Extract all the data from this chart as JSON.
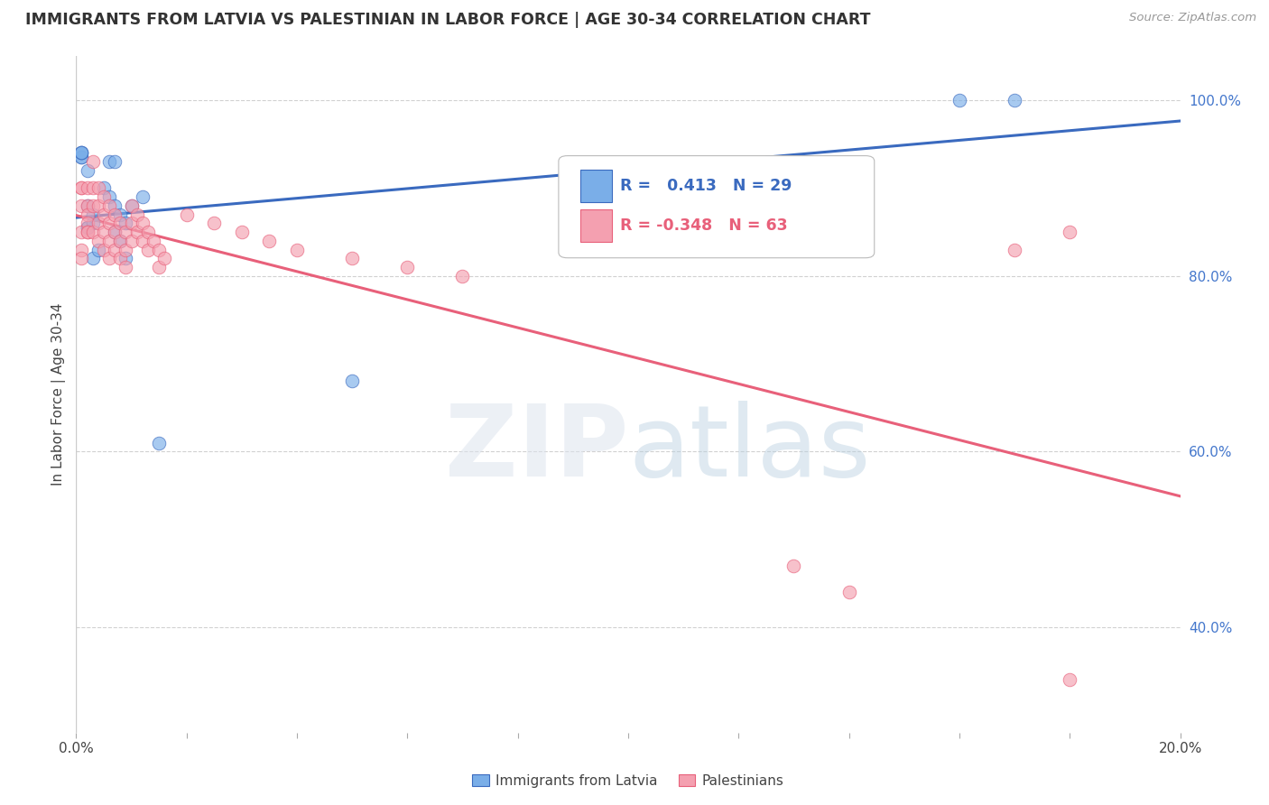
{
  "title": "IMMIGRANTS FROM LATVIA VS PALESTINIAN IN LABOR FORCE | AGE 30-34 CORRELATION CHART",
  "source": "Source: ZipAtlas.com",
  "ylabel": "In Labor Force | Age 30-34",
  "xlim": [
    0.0,
    0.2
  ],
  "ylim": [
    0.28,
    1.05
  ],
  "ytick_right_vals": [
    0.4,
    0.6,
    0.8,
    1.0
  ],
  "ytick_right_labels": [
    "40.0%",
    "60.0%",
    "80.0%",
    "100.0%"
  ],
  "xtick_vals": [
    0.0,
    0.02,
    0.04,
    0.06,
    0.08,
    0.1,
    0.12,
    0.14,
    0.16,
    0.18,
    0.2
  ],
  "xtick_labels": [
    "0.0%",
    "",
    "",
    "",
    "",
    "",
    "",
    "",
    "",
    "",
    "20.0%"
  ],
  "grid_color": "#cccccc",
  "background_color": "#ffffff",
  "legend_r_blue": "0.413",
  "legend_n_blue": "29",
  "legend_r_pink": "-0.348",
  "legend_n_pink": "63",
  "legend_label_blue": "Immigrants from Latvia",
  "legend_label_pink": "Palestinians",
  "dot_color_blue": "#7aaee8",
  "dot_color_pink": "#f4a0b0",
  "line_color_blue": "#3a6abf",
  "line_color_pink": "#e8607a",
  "blue_x": [
    0.001,
    0.001,
    0.001,
    0.001,
    0.001,
    0.002,
    0.002,
    0.002,
    0.002,
    0.003,
    0.003,
    0.003,
    0.004,
    0.005,
    0.006,
    0.006,
    0.007,
    0.007,
    0.007,
    0.008,
    0.008,
    0.009,
    0.009,
    0.01,
    0.012,
    0.015,
    0.05,
    0.16,
    0.17
  ],
  "blue_y": [
    0.935,
    0.935,
    0.94,
    0.94,
    0.94,
    0.92,
    0.88,
    0.855,
    0.855,
    0.87,
    0.86,
    0.82,
    0.83,
    0.9,
    0.93,
    0.89,
    0.93,
    0.88,
    0.85,
    0.87,
    0.84,
    0.86,
    0.82,
    0.88,
    0.89,
    0.61,
    0.68,
    1.0,
    1.0
  ],
  "pink_x": [
    0.001,
    0.001,
    0.001,
    0.001,
    0.001,
    0.001,
    0.002,
    0.002,
    0.002,
    0.002,
    0.002,
    0.002,
    0.003,
    0.003,
    0.003,
    0.003,
    0.004,
    0.004,
    0.004,
    0.004,
    0.005,
    0.005,
    0.005,
    0.005,
    0.006,
    0.006,
    0.006,
    0.006,
    0.007,
    0.007,
    0.007,
    0.008,
    0.008,
    0.008,
    0.009,
    0.009,
    0.009,
    0.01,
    0.01,
    0.01,
    0.011,
    0.011,
    0.012,
    0.012,
    0.013,
    0.013,
    0.014,
    0.015,
    0.015,
    0.016,
    0.02,
    0.025,
    0.03,
    0.035,
    0.04,
    0.05,
    0.06,
    0.07,
    0.13,
    0.14,
    0.17,
    0.18,
    0.18
  ],
  "pink_y": [
    0.9,
    0.9,
    0.88,
    0.85,
    0.83,
    0.82,
    0.9,
    0.88,
    0.87,
    0.86,
    0.85,
    0.85,
    0.93,
    0.9,
    0.88,
    0.85,
    0.9,
    0.88,
    0.86,
    0.84,
    0.89,
    0.87,
    0.85,
    0.83,
    0.88,
    0.86,
    0.84,
    0.82,
    0.87,
    0.85,
    0.83,
    0.86,
    0.84,
    0.82,
    0.85,
    0.83,
    0.81,
    0.88,
    0.86,
    0.84,
    0.87,
    0.85,
    0.86,
    0.84,
    0.85,
    0.83,
    0.84,
    0.83,
    0.81,
    0.82,
    0.87,
    0.86,
    0.85,
    0.84,
    0.83,
    0.82,
    0.81,
    0.8,
    0.47,
    0.44,
    0.83,
    0.34,
    0.85
  ]
}
